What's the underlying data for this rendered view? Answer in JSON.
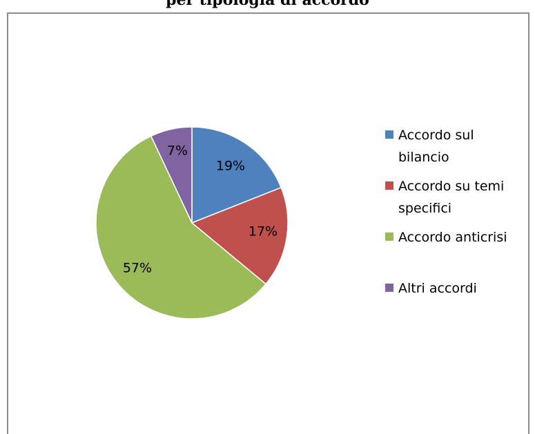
{
  "header": {
    "partial_text": "per tipologia di accordo"
  },
  "chart_data": {
    "type": "pie",
    "title": "",
    "categories": [
      "Accordo sul bilancio",
      "Accordo su temi specifici",
      "Accordo anticrisi",
      "Altri accordi"
    ],
    "legend_lines": [
      [
        "Accordo sul",
        "bilancio"
      ],
      [
        "Accordo su temi",
        "specifici"
      ],
      [
        "Accordo anticrisi"
      ],
      [
        "Altri accordi"
      ]
    ],
    "values": [
      19,
      17,
      57,
      7
    ],
    "labels": [
      "19%",
      "17%",
      "57%",
      "7%"
    ],
    "colors": [
      "#4f81bd",
      "#c0504d",
      "#9bbb59",
      "#8064a2"
    ],
    "legend_position": "right"
  }
}
